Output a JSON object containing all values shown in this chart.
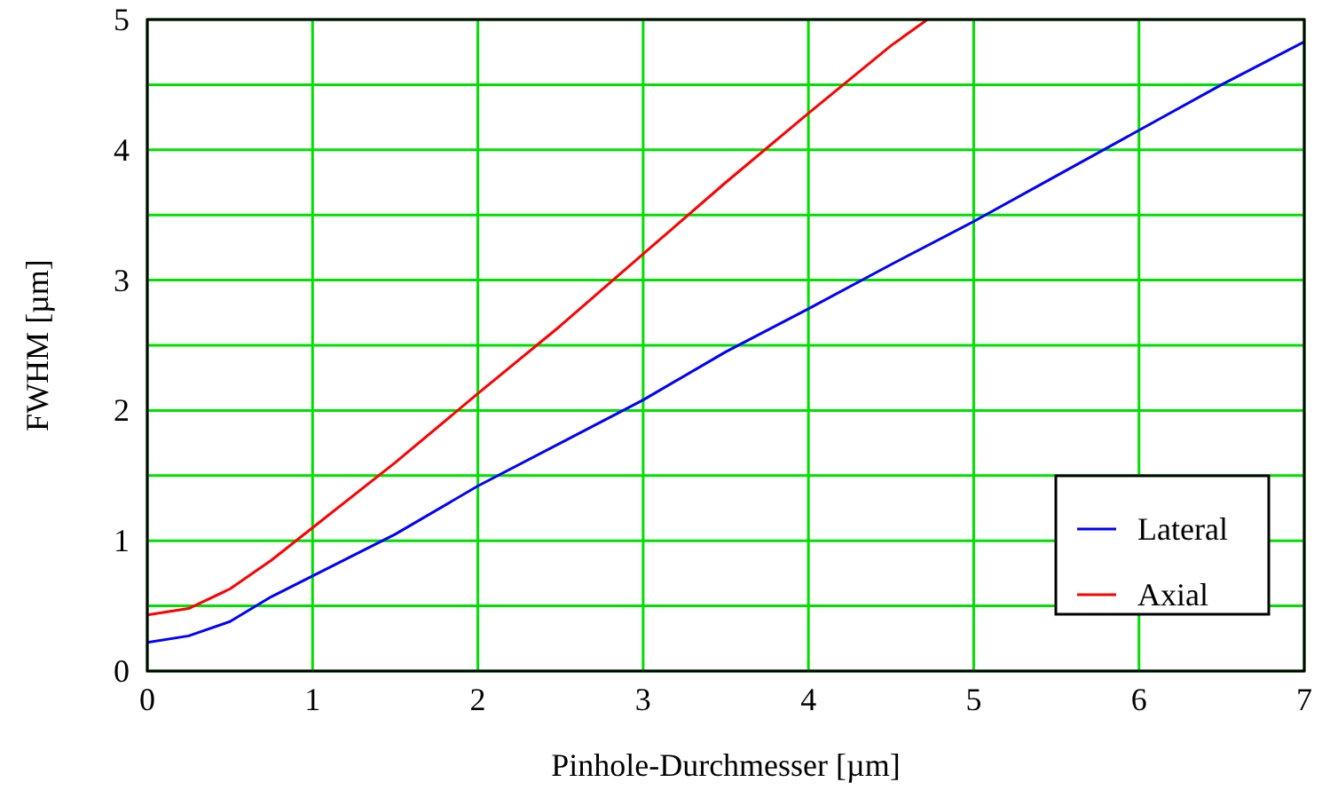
{
  "chart_data": {
    "type": "line",
    "xlabel": "Pinhole-Durchmesser [µm]",
    "ylabel": "FWHM [µm]",
    "xlim": [
      0,
      7
    ],
    "ylim": [
      0,
      5
    ],
    "xticks": [
      0,
      1,
      2,
      3,
      4,
      5,
      6,
      7
    ],
    "yticks": [
      0,
      {
        "value": 0.5,
        "label": null
      },
      1,
      {
        "value": 1.5,
        "label": null
      },
      2,
      {
        "value": 2.5,
        "label": null
      },
      3,
      {
        "value": 3.5,
        "label": null
      },
      4,
      {
        "value": 4.5,
        "label": null
      },
      5
    ],
    "grid": true,
    "legend": "bottom right",
    "marker": "none",
    "line_style": "solid",
    "series": [
      {
        "name": "Lateral",
        "color": "#0000ff",
        "x": [
          0,
          0.25,
          0.5,
          0.75,
          1,
          1.5,
          2,
          2.5,
          3,
          3.5,
          4,
          4.5,
          5,
          5.5,
          6,
          6.5,
          7
        ],
        "values": [
          0.22,
          0.27,
          0.38,
          0.57,
          0.73,
          1.05,
          1.42,
          1.75,
          2.08,
          2.45,
          2.78,
          3.12,
          3.45,
          3.8,
          4.15,
          4.5,
          4.83
        ]
      },
      {
        "name": "Axial",
        "color": "#ff0000",
        "x": [
          0,
          0.25,
          0.5,
          0.75,
          1,
          1.5,
          2,
          2.5,
          3,
          3.5,
          4,
          4.5,
          4.72
        ],
        "values": [
          0.43,
          0.48,
          0.63,
          0.85,
          1.1,
          1.6,
          2.13,
          2.65,
          3.2,
          3.75,
          4.28,
          4.8,
          5.0
        ]
      }
    ]
  }
}
